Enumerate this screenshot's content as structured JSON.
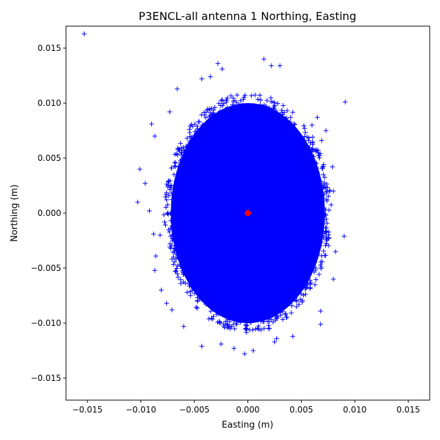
{
  "chart_data": {
    "type": "scatter",
    "title": "P3ENCL-all antenna 1 Northing, Easting",
    "xlabel": "Easting (m)",
    "ylabel": "Northing (m)",
    "xlim": [
      -0.017,
      0.017
    ],
    "ylim": [
      -0.017,
      0.017
    ],
    "grid": false,
    "x_ticks": [
      -0.015,
      -0.01,
      -0.005,
      0.0,
      0.005,
      0.01,
      0.015
    ],
    "y_ticks": [
      -0.015,
      -0.01,
      -0.005,
      0.0,
      0.005,
      0.01,
      0.015
    ],
    "x_tick_labels": [
      "−0.015",
      "−0.010",
      "−0.005",
      "0.000",
      "0.005",
      "0.010",
      "0.015"
    ],
    "y_tick_labels": [
      "−0.015",
      "−0.010",
      "−0.005",
      "0.000",
      "0.005",
      "0.010",
      "0.015"
    ],
    "cloud": {
      "center": [
        0.0,
        0.0
      ],
      "x_halfwidth": 0.0072,
      "y_halfwidth": 0.01,
      "color": "#0000ff"
    },
    "series": [
      {
        "marker": "plus",
        "color": "#0000ff",
        "points": [
          [
            -0.0153,
            0.0163
          ],
          [
            0.0091,
            0.0101
          ],
          [
            0.0015,
            0.014
          ],
          [
            -0.0028,
            0.0136
          ],
          [
            -0.0024,
            0.0131
          ],
          [
            0.003,
            0.0134
          ],
          [
            0.0022,
            0.0134
          ],
          [
            -0.0035,
            0.0124
          ],
          [
            -0.0043,
            0.0122
          ],
          [
            0.0073,
            0.0075
          ],
          [
            0.0065,
            0.0087
          ],
          [
            -0.009,
            0.0081
          ],
          [
            -0.0101,
            0.004
          ],
          [
            -0.0096,
            0.0027
          ],
          [
            -0.0103,
            0.001
          ],
          [
            -0.0092,
            0.0002
          ],
          [
            -0.0088,
            -0.0019
          ],
          [
            -0.0086,
            -0.0039
          ],
          [
            -0.0087,
            -0.0052
          ],
          [
            -0.0076,
            -0.0082
          ],
          [
            -0.0071,
            -0.0088
          ],
          [
            -0.006,
            -0.0103
          ],
          [
            -0.0043,
            -0.0121
          ],
          [
            -0.0025,
            -0.0119
          ],
          [
            -0.0013,
            -0.0123
          ],
          [
            -0.0003,
            -0.0128
          ],
          [
            0.0005,
            -0.0125
          ],
          [
            0.0025,
            -0.0117
          ],
          [
            0.0027,
            -0.0114
          ],
          [
            0.0042,
            -0.0112
          ],
          [
            0.0068,
            -0.0101
          ],
          [
            0.0068,
            -0.0089
          ],
          [
            0.0082,
            -0.0035
          ],
          [
            0.009,
            -0.0021
          ],
          [
            0.008,
            -0.006
          ],
          [
            0.008,
            0.002
          ],
          [
            0.0079,
            0.0042
          ],
          [
            0.0069,
            0.0066
          ],
          [
            0.006,
            0.008
          ],
          [
            -0.0073,
            0.0092
          ],
          [
            -0.0066,
            0.0113
          ],
          [
            -0.0087,
            0.007
          ],
          [
            -0.0082,
            -0.002
          ],
          [
            -0.0081,
            -0.007
          ]
        ]
      },
      {
        "marker": "circle",
        "color": "#ff0000",
        "points": [
          [
            0.0,
            0.0
          ]
        ]
      }
    ]
  }
}
